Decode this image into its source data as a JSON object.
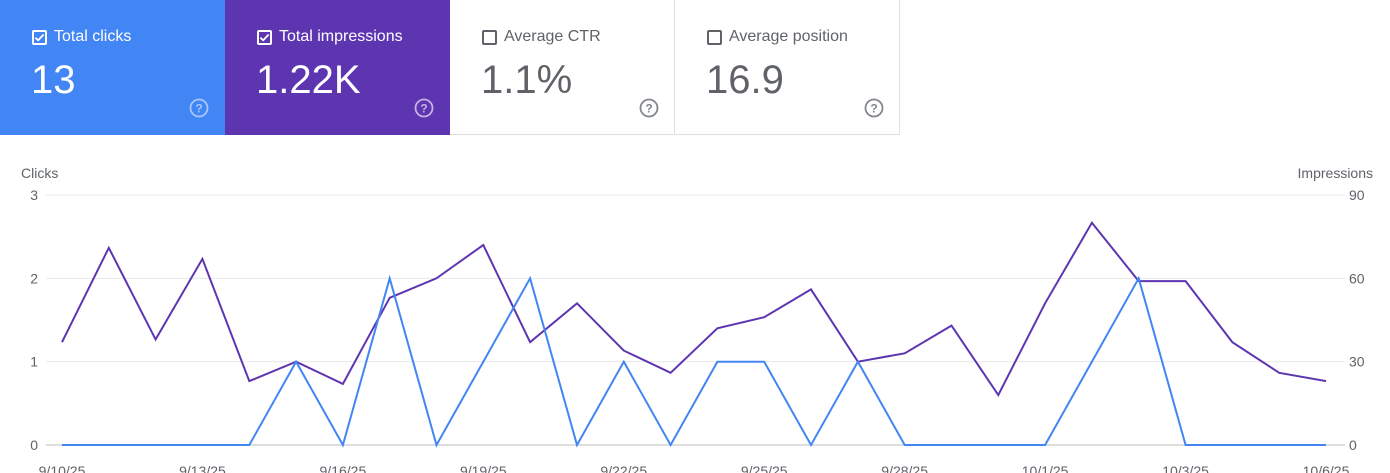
{
  "cards": [
    {
      "label": "Total clicks",
      "value": "13",
      "checked": true
    },
    {
      "label": "Total impressions",
      "value": "1.22K",
      "checked": true
    },
    {
      "label": "Average CTR",
      "value": "1.1%",
      "checked": false
    },
    {
      "label": "Average position",
      "value": "16.9",
      "checked": false
    }
  ],
  "colors": {
    "clicks": "#4285f4",
    "impressions": "#5e35b1",
    "grid": "#e8e8e8",
    "text": "#5f6368"
  },
  "chart_data": {
    "type": "line",
    "ylabel_left": "Clicks",
    "ylabel_right": "Impressions",
    "y_left_ticks": [
      "0",
      "1",
      "2",
      "3"
    ],
    "y_right_ticks": [
      "0",
      "30",
      "60",
      "90"
    ],
    "ylim_left": [
      0,
      3
    ],
    "ylim_right": [
      0,
      90
    ],
    "x_tick_labels": [
      "9/10/25",
      "9/13/25",
      "9/16/25",
      "9/19/25",
      "9/22/25",
      "9/25/25",
      "9/28/25",
      "10/1/25",
      "10/3/25",
      "10/6/25"
    ],
    "grid": true,
    "series": [
      {
        "name": "Clicks",
        "axis": "left",
        "values": [
          0,
          0,
          0,
          0,
          0,
          1,
          0,
          2,
          0,
          1,
          2,
          0,
          1,
          0,
          1,
          1,
          0,
          1,
          0,
          0,
          0,
          0,
          1,
          2,
          0,
          0,
          0,
          0
        ]
      },
      {
        "name": "Impressions",
        "axis": "right",
        "values": [
          37,
          71,
          38,
          67,
          23,
          30,
          22,
          53,
          60,
          72,
          37,
          51,
          34,
          26,
          42,
          46,
          56,
          30,
          33,
          43,
          18,
          51,
          80,
          59,
          59,
          37,
          26,
          23
        ]
      }
    ]
  }
}
